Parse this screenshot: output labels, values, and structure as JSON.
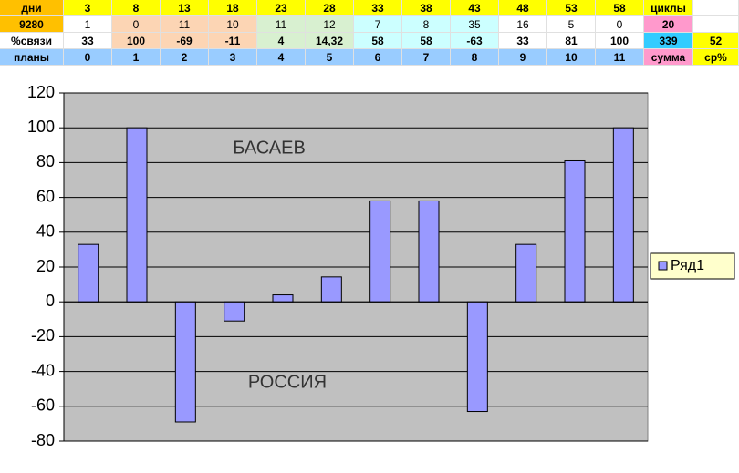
{
  "table": {
    "rows": [
      [
        "дни",
        "3",
        "8",
        "13",
        "18",
        "23",
        "28",
        "33",
        "38",
        "43",
        "48",
        "53",
        "58",
        "циклы"
      ],
      [
        "9280",
        "1",
        "0",
        "11",
        "10",
        "11",
        "12",
        "7",
        "8",
        "35",
        "16",
        "5",
        "0",
        "20"
      ],
      [
        "%связи",
        "33",
        "100",
        "-69",
        "-11",
        "4",
        "14,32",
        "58",
        "58",
        "-63",
        "33",
        "81",
        "100",
        "339",
        "52"
      ],
      [
        "планы",
        "0",
        "1",
        "2",
        "3",
        "4",
        "5",
        "6",
        "7",
        "8",
        "9",
        "10",
        "11",
        "сумма",
        "ср%"
      ]
    ]
  },
  "chart_data": {
    "type": "bar",
    "categories": [
      null,
      null,
      null,
      null,
      null,
      null,
      null,
      null,
      null,
      null,
      null,
      null
    ],
    "series": [
      {
        "name": "Ряд1",
        "color": "#9999ff",
        "values": [
          33,
          100,
          -69,
          -11,
          4,
          14.32,
          58,
          58,
          -63,
          33,
          81,
          100
        ]
      }
    ],
    "ylim": [
      -80,
      120
    ],
    "yticks": [
      -80,
      -60,
      -40,
      -20,
      0,
      20,
      40,
      60,
      80,
      100,
      120
    ],
    "grid": true,
    "annotations": [
      "БАСАЕВ",
      "РОССИЯ"
    ],
    "legend": "right"
  }
}
